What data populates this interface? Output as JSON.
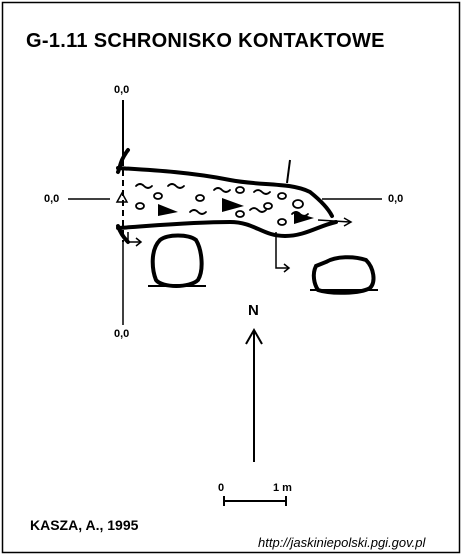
{
  "title": "G-1.11  SCHRONISKO KONTAKTOWE",
  "coords": {
    "top": "0,0",
    "left": "0,0",
    "right": "0,0",
    "bottom": "0,0"
  },
  "north_label": "N",
  "scale": {
    "start": "0",
    "end": "1 m"
  },
  "author": "KASZA, A., 1995",
  "source_url": "http://jaskiniepolski.pgi.gov.pl",
  "colors": {
    "ink": "#000000",
    "background": "#ffffff"
  }
}
